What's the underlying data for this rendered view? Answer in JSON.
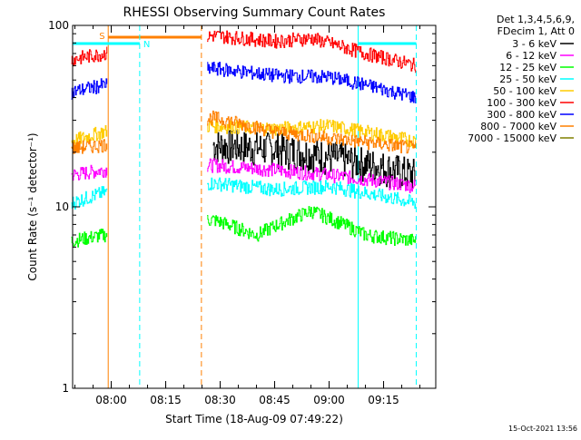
{
  "chart_data": {
    "type": "line",
    "title": "RHESSI Observing Summary Count Rates",
    "xlabel": "Start Time (18-Aug-09 07:49:22)",
    "ylabel": "Count Rate (s⁻¹ detector⁻¹)",
    "y_scale": "log",
    "ylim": [
      1,
      100
    ],
    "xlim_minutes_from_start": [
      0,
      100
    ],
    "x_ticks": [
      "08:00",
      "08:15",
      "08:30",
      "08:45",
      "09:00",
      "09:15"
    ],
    "y_ticks": [
      "1",
      "10",
      "100"
    ],
    "grid": false,
    "legend_position": "right",
    "legend_header": [
      "Det 1,3,4,5,6,9,",
      "FDecim 1, Att 0"
    ],
    "timestamp": "15-Oct-2021 13:56",
    "annotations": {
      "saa_label": "S",
      "night_label": "N",
      "saa_interval": [
        "07:59:10",
        "08:24:50"
      ],
      "night_intervals": [
        [
          "07:49:22",
          "08:07:50"
        ],
        [
          "09:08:00",
          "09:24:00"
        ]
      ]
    },
    "series": [
      {
        "name": "3 - 6 keV",
        "color": "#000000",
        "points": [
          [
            "08:28",
            22
          ],
          [
            "08:45",
            21
          ],
          [
            "09:00",
            19
          ],
          [
            "09:24",
            15
          ]
        ]
      },
      {
        "name": "6 - 12 keV",
        "color": "#ff00ff",
        "points": [
          [
            "07:49",
            15
          ],
          [
            "07:58",
            16
          ],
          [
            "08:28",
            17
          ],
          [
            "08:45",
            16
          ],
          [
            "09:00",
            15
          ],
          [
            "09:24",
            13
          ]
        ]
      },
      {
        "name": "12 - 25 keV",
        "color": "#00ff00",
        "points": [
          [
            "07:49",
            6.5
          ],
          [
            "07:58",
            7
          ],
          [
            "08:28",
            8.5
          ],
          [
            "08:40",
            7
          ],
          [
            "08:55",
            9.5
          ],
          [
            "09:10",
            7
          ],
          [
            "09:24",
            6.5
          ]
        ]
      },
      {
        "name": "25 - 50 keV",
        "color": "#00ffff",
        "points": [
          [
            "07:49",
            10.5
          ],
          [
            "07:58",
            12
          ],
          [
            "08:28",
            13.5
          ],
          [
            "08:45",
            12.5
          ],
          [
            "09:00",
            13
          ],
          [
            "09:24",
            10.5
          ]
        ]
      },
      {
        "name": "50 - 100 keV",
        "color": "#ffcc00",
        "points": [
          [
            "07:49",
            23
          ],
          [
            "07:58",
            26
          ],
          [
            "08:28",
            28
          ],
          [
            "08:45",
            27
          ],
          [
            "09:00",
            28
          ],
          [
            "09:24",
            23
          ]
        ]
      },
      {
        "name": "100 - 300 keV",
        "color": "#ff0000",
        "points": [
          [
            "07:49",
            65
          ],
          [
            "07:58",
            70
          ],
          [
            "08:28",
            88
          ],
          [
            "08:45",
            82
          ],
          [
            "08:55",
            85
          ],
          [
            "09:10",
            70
          ],
          [
            "09:24",
            60
          ]
        ]
      },
      {
        "name": "300 - 800 keV",
        "color": "#0000ff",
        "points": [
          [
            "07:49",
            43
          ],
          [
            "07:58",
            47
          ],
          [
            "08:28",
            58
          ],
          [
            "08:45",
            53
          ],
          [
            "09:00",
            52
          ],
          [
            "09:24",
            40
          ]
        ]
      },
      {
        "name": "800 - 7000 keV",
        "color": "#ff8000",
        "points": [
          [
            "07:49",
            21
          ],
          [
            "07:58",
            22
          ],
          [
            "08:28",
            31
          ],
          [
            "08:45",
            26
          ],
          [
            "09:00",
            24
          ],
          [
            "09:24",
            21
          ]
        ]
      },
      {
        "name": "7000 - 15000 keV",
        "color": "#808000",
        "points": []
      }
    ]
  },
  "legend_entries_display": [
    {
      "label": "3 - 6 keV",
      "color": "#000000"
    },
    {
      "label": "6 - 12 keV",
      "color": "#ff00ff"
    },
    {
      "label": "12 - 25 keV",
      "color": "#00ff00"
    },
    {
      "label": "25 - 50 keV",
      "color": "#00ffff"
    },
    {
      "label": "50 - 100 keV",
      "color": "#ffcc00"
    },
    {
      "label": "100 - 300 keV",
      "color": "#ff0000"
    },
    {
      "label": "300 - 800 keV",
      "color": "#0000ff"
    },
    {
      "label": "800 - 7000 keV",
      "color": "#ff8000"
    },
    {
      "label": "7000 - 15000 keV",
      "color": "#808000"
    }
  ]
}
